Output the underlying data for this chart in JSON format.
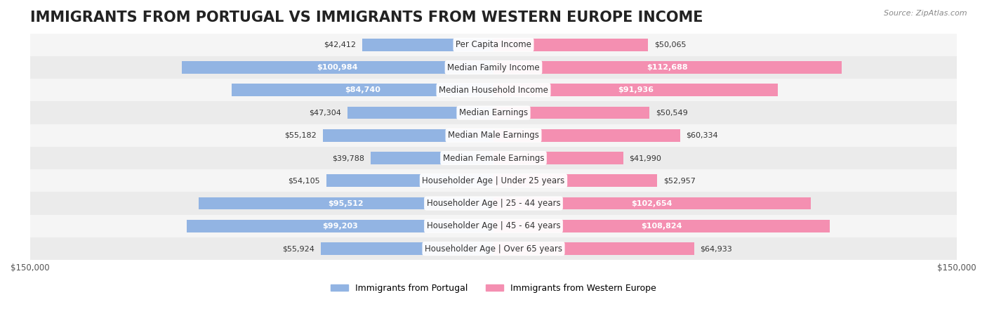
{
  "title": "IMMIGRANTS FROM PORTUGAL VS IMMIGRANTS FROM WESTERN EUROPE INCOME",
  "source": "Source: ZipAtlas.com",
  "categories": [
    "Per Capita Income",
    "Median Family Income",
    "Median Household Income",
    "Median Earnings",
    "Median Male Earnings",
    "Median Female Earnings",
    "Householder Age | Under 25 years",
    "Householder Age | 25 - 44 years",
    "Householder Age | 45 - 64 years",
    "Householder Age | Over 65 years"
  ],
  "portugal_values": [
    42412,
    100984,
    84740,
    47304,
    55182,
    39788,
    54105,
    95512,
    99203,
    55924
  ],
  "western_europe_values": [
    50065,
    112688,
    91936,
    50549,
    60334,
    41990,
    52957,
    102654,
    108824,
    64933
  ],
  "max_value": 150000,
  "portugal_color": "#92b4e3",
  "western_europe_color": "#f48fb1",
  "portugal_label_color_threshold": 70000,
  "western_europe_label_color_threshold": 70000,
  "bar_height": 0.55,
  "row_bg_color_odd": "#f5f5f5",
  "row_bg_color_even": "#ebebeb",
  "title_fontsize": 15,
  "label_fontsize": 8.5,
  "value_fontsize": 8,
  "legend_fontsize": 9,
  "background_color": "#ffffff",
  "portugal_dark_bg_values": [
    100984,
    84740,
    95512,
    99203
  ],
  "western_europe_dark_bg_values": [
    112688,
    91936,
    102654,
    108824
  ]
}
